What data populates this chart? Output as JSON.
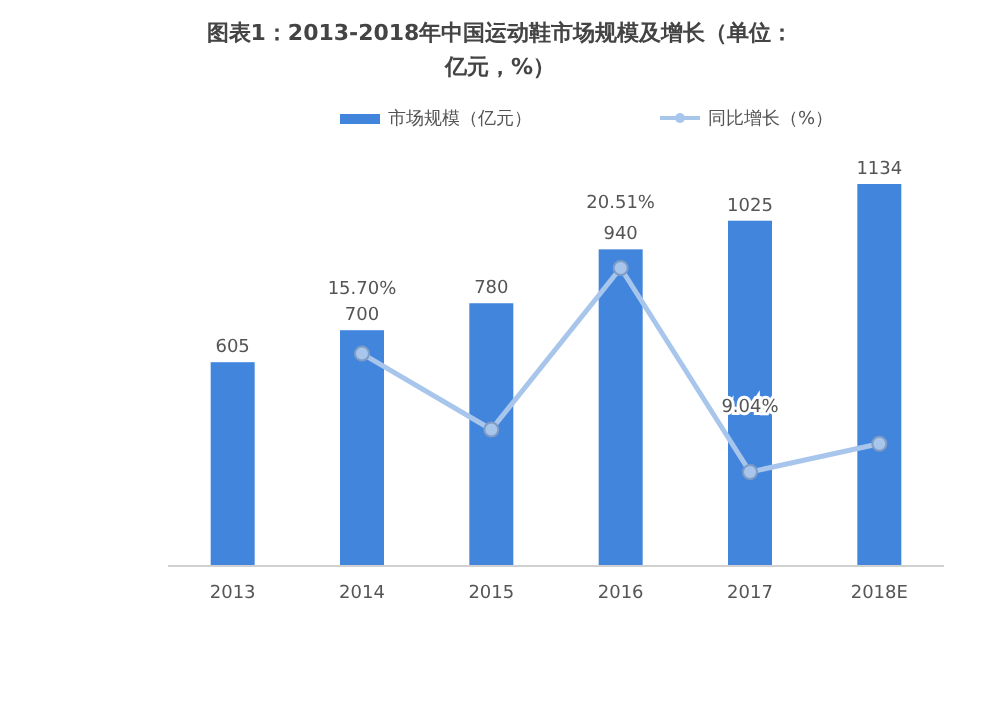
{
  "chart_data": {
    "type": "bar",
    "title": "图表1：2013-2018年中国运动鞋市场规模及增长（单位：亿元，%）",
    "categories": [
      "2013",
      "2014",
      "2015",
      "2016",
      "2017",
      "2018E"
    ],
    "series": [
      {
        "name": "市场规模（亿元）",
        "color": "#4285dc",
        "values": [
          605,
          700,
          780,
          940,
          1025,
          1134
        ],
        "value_labels": [
          "605",
          "700",
          "780",
          "940",
          "1025",
          "1134"
        ]
      },
      {
        "name": "同比增长（%）",
        "type": "line",
        "axis": "y2",
        "color": "#a8c6ec",
        "marker": "circle",
        "values": [
          null,
          15.7,
          11.43,
          20.51,
          9.04,
          10.63
        ],
        "value_labels": [
          null,
          "15.70%",
          null,
          "20.51%",
          "9.04%",
          null
        ]
      }
    ],
    "legend": "top"
  }
}
